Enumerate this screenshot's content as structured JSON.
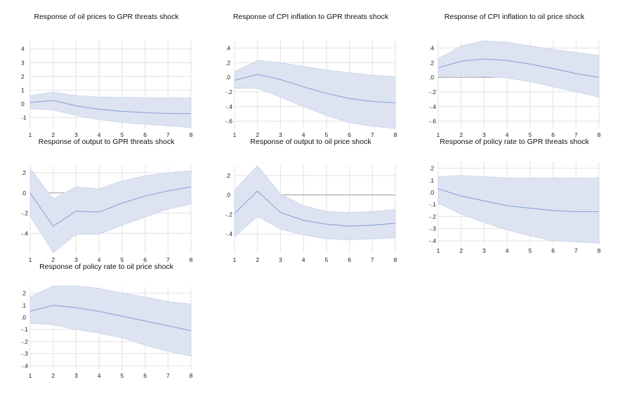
{
  "chart_data": [
    {
      "type": "area",
      "title": "Response of oil prices to GPR threats shock",
      "x": [
        1,
        2,
        3,
        4,
        5,
        6,
        7,
        8
      ],
      "xticks": [
        "1",
        "2",
        "3",
        "4",
        "5",
        "6",
        "7",
        "8"
      ],
      "ylim": [
        -1.8,
        4.6
      ],
      "yticks": [
        -1,
        0,
        1,
        2,
        3,
        4
      ],
      "yticklabels": [
        "-1",
        "0",
        "1",
        "2",
        "3",
        "4"
      ],
      "grid": true,
      "series": [
        {
          "role": "response",
          "values": [
            0.1,
            0.25,
            -0.15,
            -0.4,
            -0.55,
            -0.65,
            -0.7,
            -0.72
          ]
        },
        {
          "role": "upper",
          "values": [
            0.6,
            0.85,
            0.6,
            0.5,
            0.48,
            0.45,
            0.45,
            0.45
          ]
        },
        {
          "role": "lower",
          "values": [
            -0.35,
            -0.45,
            -0.85,
            -1.15,
            -1.35,
            -1.5,
            -1.6,
            -1.75
          ]
        }
      ]
    },
    {
      "type": "area",
      "title": "Response of CPI inflation to GPR threats shock",
      "x": [
        1,
        2,
        3,
        4,
        5,
        6,
        7,
        8
      ],
      "xticks": [
        "1",
        "2",
        "3",
        "4",
        "5",
        "6",
        "7",
        "8"
      ],
      "ylim": [
        -0.7,
        0.5
      ],
      "yticks": [
        -0.6,
        -0.4,
        -0.2,
        0,
        0.2,
        0.4
      ],
      "yticklabels": [
        "-.6",
        "-.4",
        "-.2",
        ".0",
        ".2",
        ".4"
      ],
      "grid": true,
      "series": [
        {
          "role": "response",
          "values": [
            -0.04,
            0.04,
            -0.03,
            -0.13,
            -0.22,
            -0.29,
            -0.33,
            -0.35
          ]
        },
        {
          "role": "upper",
          "values": [
            0.08,
            0.23,
            0.2,
            0.15,
            0.1,
            0.06,
            0.03,
            0.01
          ]
        },
        {
          "role": "lower",
          "values": [
            -0.15,
            -0.15,
            -0.27,
            -0.4,
            -0.52,
            -0.62,
            -0.67,
            -0.7
          ]
        }
      ]
    },
    {
      "type": "area",
      "title": "Response of CPI inflation to oil price shock",
      "x": [
        1,
        2,
        3,
        4,
        5,
        6,
        7,
        8
      ],
      "xticks": [
        "1",
        "2",
        "3",
        "4",
        "5",
        "6",
        "7",
        "8"
      ],
      "ylim": [
        -0.7,
        0.5
      ],
      "yticks": [
        -0.6,
        -0.4,
        -0.2,
        0,
        0.2,
        0.4
      ],
      "yticklabels": [
        "-.6",
        "-.4",
        "-.2",
        ".0",
        ".2",
        ".4"
      ],
      "grid": true,
      "series": [
        {
          "role": "response",
          "values": [
            0.13,
            0.22,
            0.25,
            0.23,
            0.18,
            0.12,
            0.05,
            0.0
          ]
        },
        {
          "role": "upper",
          "values": [
            0.25,
            0.43,
            0.5,
            0.48,
            0.43,
            0.38,
            0.34,
            0.3
          ]
        },
        {
          "role": "lower",
          "values": [
            0.01,
            0.02,
            0.01,
            -0.01,
            -0.06,
            -0.13,
            -0.2,
            -0.27
          ]
        }
      ]
    },
    {
      "type": "area",
      "title": "Response of output to GPR threats shock",
      "x": [
        1,
        2,
        3,
        4,
        5,
        6,
        7,
        8
      ],
      "xticks": [
        "1",
        "2",
        "3",
        "4",
        "5",
        "6",
        "7",
        "8"
      ],
      "ylim": [
        -0.6,
        0.27
      ],
      "yticks": [
        -0.4,
        -0.2,
        0,
        0.2
      ],
      "yticklabels": [
        "-.4",
        "-.2",
        ".0",
        ".2"
      ],
      "grid": true,
      "series": [
        {
          "role": "response",
          "values": [
            0.0,
            -0.33,
            -0.18,
            -0.19,
            -0.1,
            -0.03,
            0.02,
            0.06
          ]
        },
        {
          "role": "upper",
          "values": [
            0.24,
            -0.06,
            0.06,
            0.04,
            0.12,
            0.17,
            0.2,
            0.22
          ]
        },
        {
          "role": "lower",
          "values": [
            -0.23,
            -0.59,
            -0.41,
            -0.41,
            -0.32,
            -0.24,
            -0.16,
            -0.11
          ]
        }
      ]
    },
    {
      "type": "area",
      "title": "Response of output to oil price shock",
      "x": [
        1,
        2,
        3,
        4,
        5,
        6,
        7,
        8
      ],
      "xticks": [
        "1",
        "2",
        "3",
        "4",
        "5",
        "6",
        "7",
        "8"
      ],
      "ylim": [
        -0.6,
        0.3
      ],
      "yticks": [
        -0.4,
        -0.2,
        0,
        0.2
      ],
      "yticklabels": [
        "-.4",
        "-.2",
        ".0",
        ".2"
      ],
      "grid": true,
      "series": [
        {
          "role": "response",
          "values": [
            -0.19,
            0.04,
            -0.18,
            -0.26,
            -0.3,
            -0.32,
            -0.31,
            -0.29
          ]
        },
        {
          "role": "upper",
          "values": [
            0.05,
            0.3,
            0.01,
            -0.11,
            -0.17,
            -0.18,
            -0.17,
            -0.15
          ]
        },
        {
          "role": "lower",
          "values": [
            -0.43,
            -0.22,
            -0.35,
            -0.41,
            -0.45,
            -0.46,
            -0.45,
            -0.44
          ]
        }
      ]
    },
    {
      "type": "area",
      "title": "Response of policy rate to GPR threats shock",
      "x": [
        1,
        2,
        3,
        4,
        5,
        6,
        7,
        8
      ],
      "xticks": [
        "1",
        "2",
        "3",
        "4",
        "5",
        "6",
        "7",
        "8"
      ],
      "ylim": [
        -0.43,
        0.25
      ],
      "yticks": [
        -0.4,
        -0.3,
        -0.2,
        -0.1,
        0,
        0.1,
        0.2
      ],
      "yticklabels": [
        "-.4",
        "-.3",
        "-.2",
        "-.1",
        ".0",
        ".1",
        ".2"
      ],
      "grid": true,
      "series": [
        {
          "role": "response",
          "values": [
            0.03,
            -0.03,
            -0.07,
            -0.11,
            -0.13,
            -0.15,
            -0.16,
            -0.16
          ]
        },
        {
          "role": "upper",
          "values": [
            0.13,
            0.14,
            0.13,
            0.12,
            0.12,
            0.12,
            0.12,
            0.12
          ]
        },
        {
          "role": "lower",
          "values": [
            -0.09,
            -0.18,
            -0.25,
            -0.31,
            -0.36,
            -0.4,
            -0.41,
            -0.42
          ]
        }
      ]
    },
    {
      "type": "area",
      "title": "Response of policy rate to oil price shock",
      "x": [
        1,
        2,
        3,
        4,
        5,
        6,
        7,
        8
      ],
      "xticks": [
        "1",
        "2",
        "3",
        "4",
        "5",
        "6",
        "7",
        "8"
      ],
      "ylim": [
        -0.43,
        0.25
      ],
      "yticks": [
        -0.4,
        -0.3,
        -0.2,
        -0.1,
        0,
        0.1,
        0.2
      ],
      "yticklabels": [
        "-.4",
        "-.3",
        "-.2",
        "-.1",
        ".0",
        ".1",
        ".2"
      ],
      "grid": true,
      "series": [
        {
          "role": "response",
          "values": [
            0.05,
            0.1,
            0.08,
            0.05,
            0.01,
            -0.03,
            -0.07,
            -0.11
          ]
        },
        {
          "role": "upper",
          "values": [
            0.17,
            0.26,
            0.26,
            0.24,
            0.2,
            0.17,
            0.13,
            0.11
          ]
        },
        {
          "role": "lower",
          "values": [
            -0.05,
            -0.06,
            -0.1,
            -0.13,
            -0.17,
            -0.23,
            -0.28,
            -0.32
          ]
        }
      ]
    }
  ]
}
